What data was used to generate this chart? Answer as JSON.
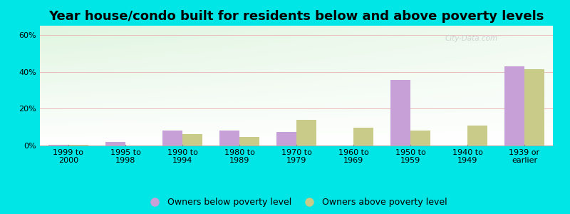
{
  "title": "Year house/condo built for residents below and above poverty levels",
  "categories": [
    "1999 to\n2000",
    "1995 to\n1998",
    "1990 to\n1994",
    "1980 to\n1989",
    "1970 to\n1979",
    "1960 to\n1969",
    "1950 to\n1959",
    "1940 to\n1949",
    "1939 or\nearlier"
  ],
  "below_poverty": [
    0.5,
    2.0,
    8.0,
    8.0,
    7.5,
    0.0,
    35.5,
    0.0,
    43.0
  ],
  "above_poverty": [
    0.5,
    0.0,
    6.0,
    4.5,
    14.0,
    9.5,
    8.0,
    11.0,
    41.5
  ],
  "below_color": "#c8a0d8",
  "above_color": "#c8cc88",
  "background_color": "#00e5e5",
  "yticks": [
    0,
    20,
    40,
    60
  ],
  "ylim": [
    0,
    65
  ],
  "bar_width": 0.35,
  "legend_below_label": "Owners below poverty level",
  "legend_above_label": "Owners above poverty level",
  "title_fontsize": 13,
  "tick_fontsize": 8,
  "legend_fontsize": 9
}
